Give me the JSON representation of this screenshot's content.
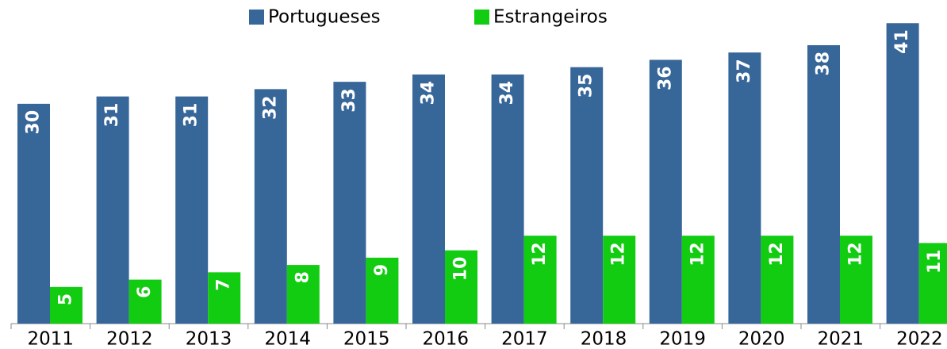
{
  "chart_data": {
    "type": "bar",
    "categories": [
      "2011",
      "2012",
      "2013",
      "2014",
      "2015",
      "2016",
      "2017",
      "2018",
      "2019",
      "2020",
      "2021",
      "2022"
    ],
    "series": [
      {
        "name": "Portugueses",
        "color": "#376699",
        "values": [
          30,
          31,
          31,
          32,
          33,
          34,
          34,
          35,
          36,
          37,
          38,
          41
        ]
      },
      {
        "name": "Estrangeiros",
        "color": "#11cc11",
        "values": [
          5,
          6,
          7,
          8,
          9,
          10,
          12,
          12,
          12,
          12,
          12,
          11
        ]
      }
    ],
    "ylim": [
      0,
      42
    ],
    "legend": "top"
  }
}
